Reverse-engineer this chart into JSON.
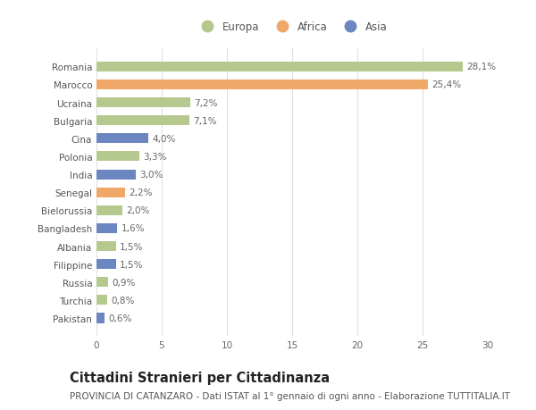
{
  "categories": [
    "Romania",
    "Marocco",
    "Ucraina",
    "Bulgaria",
    "Cina",
    "Polonia",
    "India",
    "Senegal",
    "Bielorussia",
    "Bangladesh",
    "Albania",
    "Filippine",
    "Russia",
    "Turchia",
    "Pakistan"
  ],
  "values": [
    28.1,
    25.4,
    7.2,
    7.1,
    4.0,
    3.3,
    3.0,
    2.2,
    2.0,
    1.6,
    1.5,
    1.5,
    0.9,
    0.8,
    0.6
  ],
  "labels": [
    "28,1%",
    "25,4%",
    "7,2%",
    "7,1%",
    "4,0%",
    "3,3%",
    "3,0%",
    "2,2%",
    "2,0%",
    "1,6%",
    "1,5%",
    "1,5%",
    "0,9%",
    "0,8%",
    "0,6%"
  ],
  "continent": [
    "Europa",
    "Africa",
    "Europa",
    "Europa",
    "Asia",
    "Europa",
    "Asia",
    "Africa",
    "Europa",
    "Asia",
    "Europa",
    "Asia",
    "Europa",
    "Europa",
    "Asia"
  ],
  "colors": {
    "Europa": "#b5c98e",
    "Africa": "#f0a868",
    "Asia": "#6b86c0"
  },
  "xlim": [
    0,
    30
  ],
  "xticks": [
    0,
    5,
    10,
    15,
    20,
    25,
    30
  ],
  "title": "Cittadini Stranieri per Cittadinanza",
  "subtitle": "PROVINCIA DI CATANZARO - Dati ISTAT al 1° gennaio di ogni anno - Elaborazione TUTTITALIA.IT",
  "background_color": "#ffffff",
  "grid_color": "#e0e0e0",
  "bar_height": 0.55,
  "title_fontsize": 10.5,
  "subtitle_fontsize": 7.5,
  "label_fontsize": 7.5,
  "tick_fontsize": 7.5,
  "legend_fontsize": 8.5
}
